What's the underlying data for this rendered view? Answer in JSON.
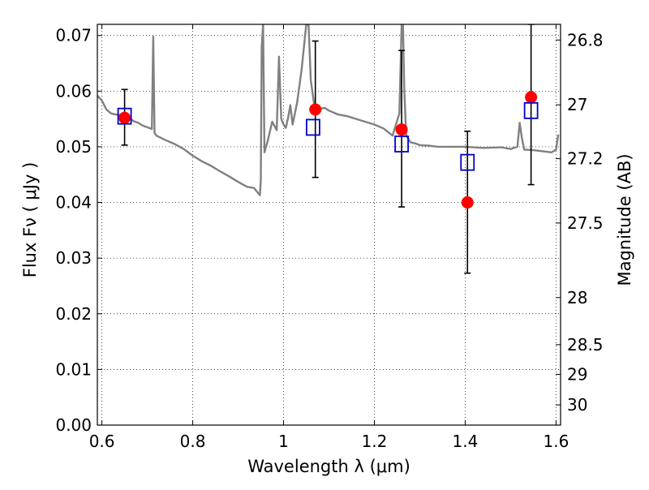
{
  "chart_data": {
    "type": "scatter",
    "xlabel": "Wavelength  λ (μm)",
    "ylabel": "Flux  Fν  ( μJy )",
    "y2label": "Magnitude (AB)",
    "xlim": [
      0.59,
      1.61
    ],
    "ylim": [
      0.0,
      0.072
    ],
    "grid": true,
    "x_ticks": [
      {
        "value": 0.6,
        "label": "0.6"
      },
      {
        "value": 0.8,
        "label": "0.8"
      },
      {
        "value": 1.0,
        "label": "1"
      },
      {
        "value": 1.2,
        "label": "1.2"
      },
      {
        "value": 1.4,
        "label": "1.4"
      },
      {
        "value": 1.6,
        "label": "1.6"
      }
    ],
    "y_ticks": [
      {
        "value": 0.0,
        "label": "0.00"
      },
      {
        "value": 0.01,
        "label": "0.01"
      },
      {
        "value": 0.02,
        "label": "0.02"
      },
      {
        "value": 0.03,
        "label": "0.03"
      },
      {
        "value": 0.04,
        "label": "0.04"
      },
      {
        "value": 0.05,
        "label": "0.05"
      },
      {
        "value": 0.06,
        "label": "0.06"
      },
      {
        "value": 0.07,
        "label": "0.07"
      }
    ],
    "y2_ticks": [
      {
        "value": 26.8,
        "label": "26.8"
      },
      {
        "value": 27.0,
        "label": "27"
      },
      {
        "value": 27.2,
        "label": "27.2"
      },
      {
        "value": 27.5,
        "label": "27.5"
      },
      {
        "value": 28.0,
        "label": "28"
      },
      {
        "value": 28.5,
        "label": "28.5"
      },
      {
        "value": 29.0,
        "label": "29"
      },
      {
        "value": 30.0,
        "label": "30"
      }
    ],
    "series": [
      {
        "kind": "line",
        "color": "#808080",
        "x": [
          0.59,
          0.6,
          0.61,
          0.62,
          0.63,
          0.64,
          0.65,
          0.66,
          0.67,
          0.68,
          0.69,
          0.7,
          0.71,
          0.713,
          0.716,
          0.72,
          0.74,
          0.76,
          0.78,
          0.8,
          0.82,
          0.84,
          0.86,
          0.88,
          0.9,
          0.92,
          0.935,
          0.945,
          0.948,
          0.95,
          0.952,
          0.955,
          0.958,
          0.965,
          0.975,
          0.985,
          0.99,
          0.995,
          1.0,
          1.005,
          1.01,
          1.015,
          1.02,
          1.03,
          1.04,
          1.05,
          1.055,
          1.06,
          1.07,
          1.08,
          1.09,
          1.1,
          1.12,
          1.14,
          1.16,
          1.18,
          1.2,
          1.22,
          1.24,
          1.255,
          1.26,
          1.263,
          1.266,
          1.27,
          1.28,
          1.29,
          1.3,
          1.32,
          1.34,
          1.36,
          1.4,
          1.44,
          1.48,
          1.5,
          1.515,
          1.52,
          1.525,
          1.53,
          1.55,
          1.57,
          1.59,
          1.6,
          1.605
        ],
        "y": [
          0.0592,
          0.0583,
          0.0567,
          0.056,
          0.0558,
          0.0557,
          0.0556,
          0.0552,
          0.0546,
          0.0543,
          0.0538,
          0.0535,
          0.0532,
          0.0698,
          0.0525,
          0.052,
          0.0512,
          0.0505,
          0.0496,
          0.0484,
          0.0474,
          0.0466,
          0.0456,
          0.0447,
          0.0437,
          0.0428,
          0.0426,
          0.0416,
          0.0413,
          0.044,
          0.068,
          0.072,
          0.049,
          0.051,
          0.0545,
          0.053,
          0.0662,
          0.055,
          0.054,
          0.0534,
          0.0552,
          0.0575,
          0.054,
          0.058,
          0.064,
          0.072,
          0.072,
          0.062,
          0.056,
          0.0568,
          0.057,
          0.0565,
          0.0558,
          0.0555,
          0.055,
          0.0545,
          0.054,
          0.0533,
          0.052,
          0.056,
          0.072,
          0.072,
          0.06,
          0.052,
          0.0508,
          0.0506,
          0.0503,
          0.0502,
          0.05,
          0.05,
          0.05,
          0.0498,
          0.0499,
          0.0496,
          0.05,
          0.0543,
          0.0515,
          0.0495,
          0.0494,
          0.0492,
          0.049,
          0.0495,
          0.0522
        ]
      },
      {
        "kind": "errorbar",
        "color": "#000000",
        "x": [
          0.65,
          1.07,
          1.26,
          1.405,
          1.545
        ],
        "y": [
          0.0552,
          0.0567,
          0.0531,
          0.04,
          0.0589
        ],
        "lower": [
          0.0503,
          0.0445,
          0.0392,
          0.0273,
          0.0432
        ],
        "upper": [
          0.0603,
          0.069,
          0.0673,
          0.0528,
          0.072
        ]
      },
      {
        "kind": "scatter",
        "marker": "circle",
        "color": "#ff0000",
        "x": [
          0.65,
          1.07,
          1.26,
          1.405,
          1.545
        ],
        "y": [
          0.0552,
          0.0567,
          0.0531,
          0.04,
          0.0589
        ]
      },
      {
        "kind": "scatter",
        "marker": "square-open",
        "color": "#0000cc",
        "x": [
          0.65,
          1.065,
          1.26,
          1.405,
          1.545
        ],
        "y": [
          0.0555,
          0.0535,
          0.0505,
          0.0472,
          0.0565
        ]
      }
    ]
  }
}
